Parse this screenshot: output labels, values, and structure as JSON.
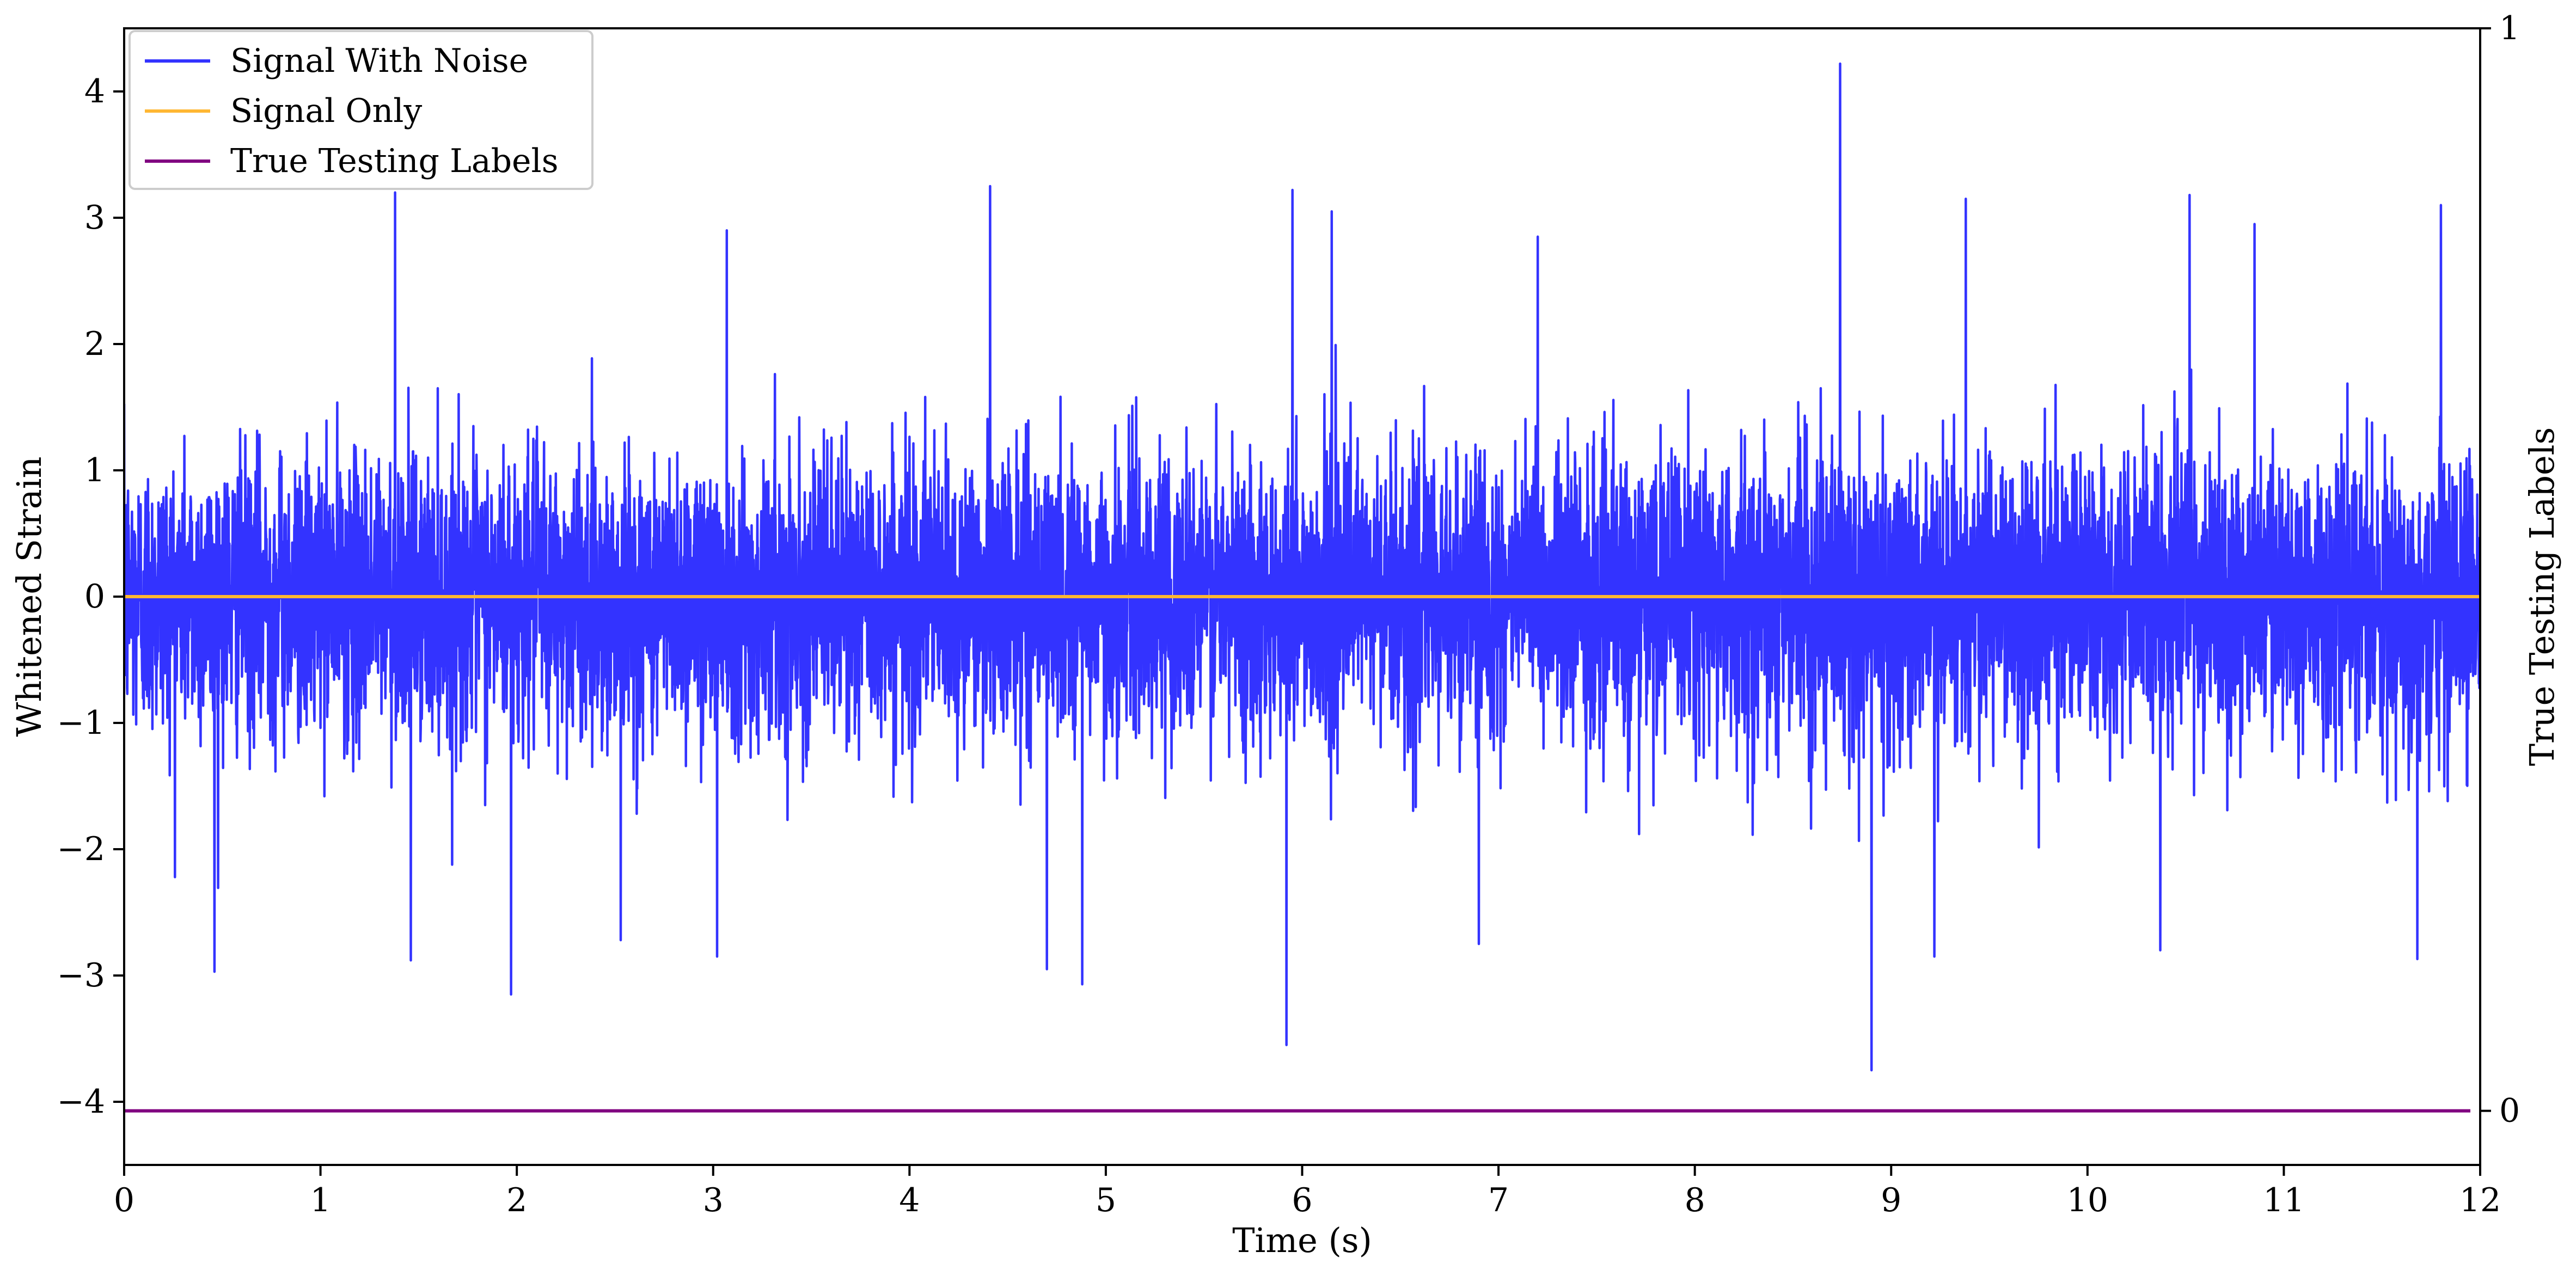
{
  "chart_data": {
    "type": "line",
    "title": "",
    "xlabel": "Time (s)",
    "ylabel": "Whitened Strain",
    "ylabel_right": "True Testing Labels",
    "xlim": [
      0,
      12
    ],
    "ylim": [
      -4.5,
      4.5
    ],
    "ylim_right": [
      -0.05,
      1.0
    ],
    "x_ticks": [
      0,
      1,
      2,
      3,
      4,
      5,
      6,
      7,
      8,
      9,
      10,
      11,
      12
    ],
    "x_tick_labels": [
      "0",
      "1",
      "2",
      "3",
      "4",
      "5",
      "6",
      "7",
      "8",
      "9",
      "10",
      "11",
      "12"
    ],
    "y_ticks": [
      -4,
      -3,
      -2,
      -1,
      0,
      1,
      2,
      3,
      4
    ],
    "y_tick_labels": [
      "−4",
      "−3",
      "−2",
      "−1",
      "0",
      "1",
      "2",
      "3",
      "4"
    ],
    "y_right_ticks": [
      0,
      1
    ],
    "y_right_tick_labels": [
      "0",
      "1"
    ],
    "grid": false,
    "legend_position": "top-left",
    "series": [
      {
        "name": "Signal With Noise",
        "color": "#3333ff",
        "axis": "left",
        "noise_std": 0.55,
        "peaks": [
          {
            "x": 1.38,
            "y": 3.2
          },
          {
            "x": 1.97,
            "y": -3.15
          },
          {
            "x": 3.07,
            "y": 2.9
          },
          {
            "x": 3.02,
            "y": -2.85
          },
          {
            "x": 4.41,
            "y": 3.25
          },
          {
            "x": 4.88,
            "y": -3.07
          },
          {
            "x": 4.7,
            "y": -2.95
          },
          {
            "x": 5.95,
            "y": 3.22
          },
          {
            "x": 5.92,
            "y": -3.55
          },
          {
            "x": 6.15,
            "y": 3.05
          },
          {
            "x": 6.9,
            "y": -2.75
          },
          {
            "x": 8.74,
            "y": 4.22
          },
          {
            "x": 8.9,
            "y": -3.75
          },
          {
            "x": 9.38,
            "y": 3.15
          },
          {
            "x": 10.52,
            "y": 3.18
          },
          {
            "x": 0.46,
            "y": -2.97
          },
          {
            "x": 1.46,
            "y": -2.88
          },
          {
            "x": 2.53,
            "y": -2.72
          },
          {
            "x": 7.2,
            "y": 2.85
          },
          {
            "x": 11.8,
            "y": 3.1
          },
          {
            "x": 10.85,
            "y": 2.95
          },
          {
            "x": 9.22,
            "y": -2.85
          },
          {
            "x": 11.68,
            "y": -2.87
          },
          {
            "x": 10.37,
            "y": -2.8
          }
        ]
      },
      {
        "name": "Signal Only",
        "color": "#ffb733",
        "axis": "left",
        "x": [
          0,
          12
        ],
        "y": [
          0,
          0
        ]
      },
      {
        "name": "True Testing Labels",
        "color": "#800080",
        "axis": "right",
        "x": [
          0,
          11.95
        ],
        "y": [
          0,
          0
        ]
      }
    ]
  }
}
